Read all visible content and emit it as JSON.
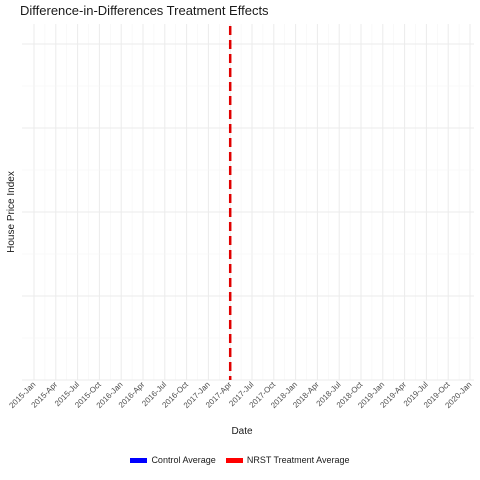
{
  "chart_data": {
    "type": "line",
    "title": "Difference-in-Differences Treatment Effects",
    "xlabel": "Date",
    "ylabel": "House Price Index",
    "x_ticks": [
      "2015-Jan",
      "2015-Apr",
      "2015-Jul",
      "2015-Oct",
      "2016-Jan",
      "2016-Apr",
      "2016-Jul",
      "2016-Oct",
      "2017-Jan",
      "2017-Apr",
      "2017-Jul",
      "2017-Oct",
      "2018-Jan",
      "2018-Apr",
      "2018-Jul",
      "2018-Oct",
      "2019-Jan",
      "2019-Apr",
      "2019-Jul",
      "2019-Oct",
      "2020-Jan"
    ],
    "series": [
      {
        "name": "Control Average",
        "color": "#0000ff",
        "values": []
      },
      {
        "name": "NRST Treatment Average",
        "color": "#ff0000",
        "values": []
      }
    ],
    "vline": {
      "x": "2017-Apr",
      "color": "#e00000",
      "style": "dashed"
    },
    "grid": true,
    "legend_position": "bottom"
  }
}
